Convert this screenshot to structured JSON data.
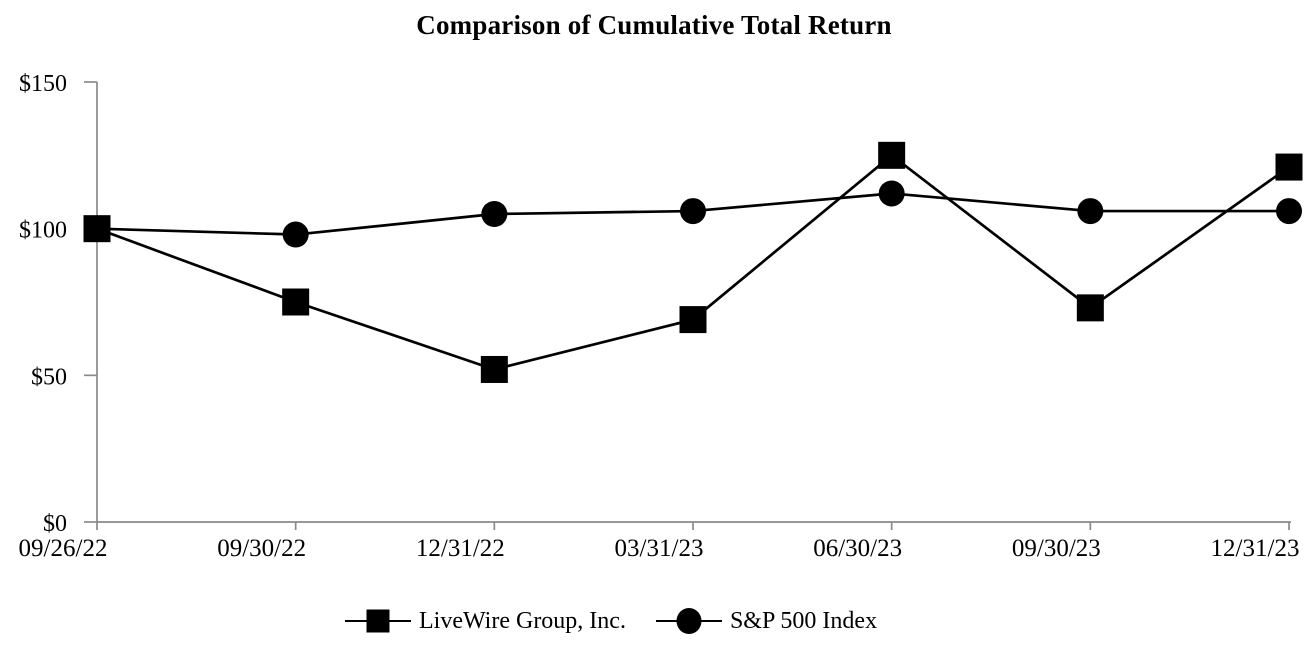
{
  "chart_data": {
    "type": "line",
    "title": "Comparison of Cumulative Total Return",
    "categories": [
      "09/26/22",
      "09/30/22",
      "12/31/22",
      "03/31/23",
      "06/30/23",
      "09/30/23",
      "12/31/23"
    ],
    "series": [
      {
        "name": "LiveWire Group, Inc.",
        "marker": "square",
        "color": "#000000",
        "values": [
          100,
          75,
          52,
          69,
          125,
          73,
          121
        ]
      },
      {
        "name": "S&P 500 Index",
        "marker": "circle",
        "color": "#000000",
        "values": [
          100,
          98,
          105,
          106,
          112,
          106,
          106
        ]
      }
    ],
    "xlabel": "",
    "ylabel": "",
    "ylim": [
      0,
      150
    ],
    "yticks": [
      {
        "value": 0,
        "label": "$0"
      },
      {
        "value": 50,
        "label": "$50"
      },
      {
        "value": 100,
        "label": "$100"
      },
      {
        "value": 150,
        "label": "$150"
      }
    ],
    "grid": false,
    "legend_position": "bottom",
    "axis_color": "#8a8a8a",
    "line_color": "#000000",
    "background": "#ffffff"
  }
}
